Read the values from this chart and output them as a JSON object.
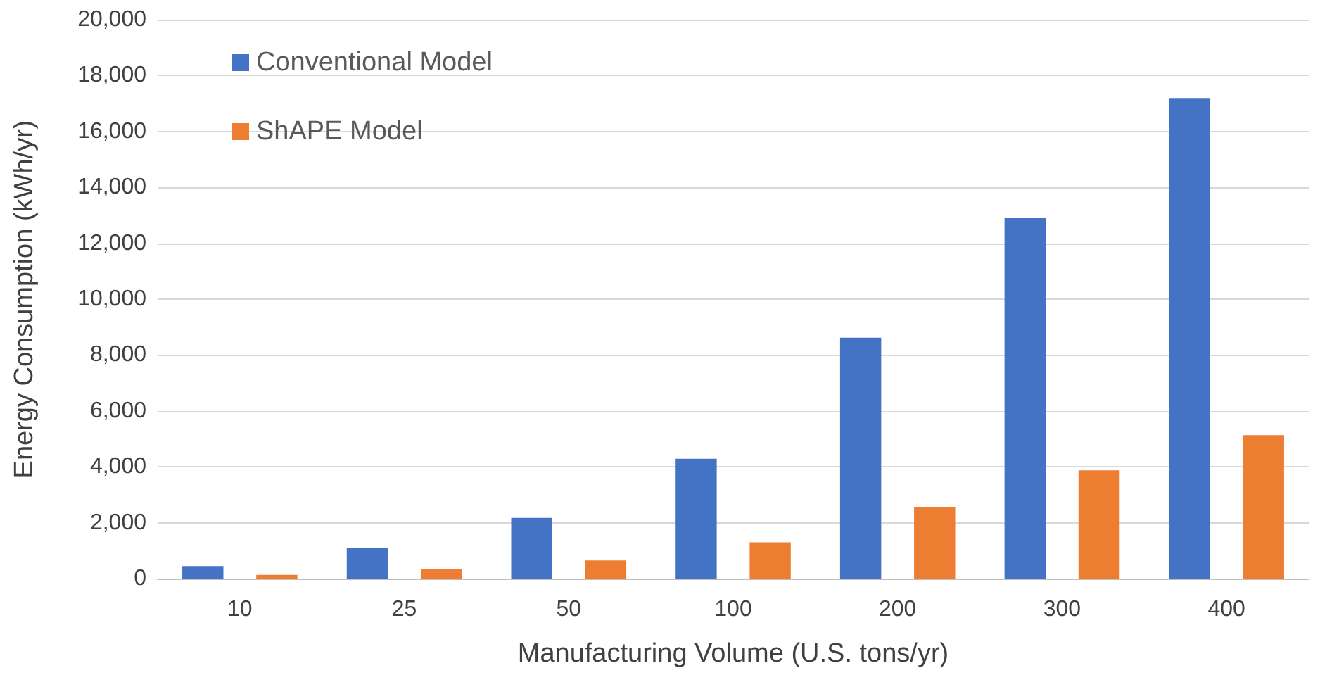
{
  "chart_data": {
    "type": "bar",
    "xlabel": "Manufacturing Volume (U.S. tons/yr)",
    "ylabel": "Energy Consumption (kWh/yr)",
    "categories": [
      "10",
      "25",
      "50",
      "100",
      "200",
      "300",
      "400"
    ],
    "series": [
      {
        "name": "Conventional Model",
        "color": "#4472c4",
        "values": [
          450,
          1100,
          2170,
          4290,
          8620,
          12900,
          17200
        ]
      },
      {
        "name": "ShAPE Model",
        "color": "#ed7d31",
        "values": [
          130,
          340,
          650,
          1300,
          2570,
          3870,
          5130
        ]
      }
    ],
    "ylim": [
      0,
      20000
    ],
    "yticks": [
      0,
      {
        "value": 2000,
        "label": "2,000"
      },
      {
        "value": 4000,
        "label": "4,000"
      },
      {
        "value": 6000,
        "label": "6,000"
      },
      {
        "value": 8000,
        "label": "8,000"
      },
      {
        "value": 10000,
        "label": "10,000"
      },
      {
        "value": 12000,
        "label": "12,000"
      },
      {
        "value": 14000,
        "label": "14,000"
      },
      {
        "value": 16000,
        "label": "16,000"
      },
      {
        "value": 18000,
        "label": "18,000"
      },
      {
        "value": 20000,
        "label": "20,000"
      }
    ],
    "grid": "y",
    "legend": "top left"
  }
}
